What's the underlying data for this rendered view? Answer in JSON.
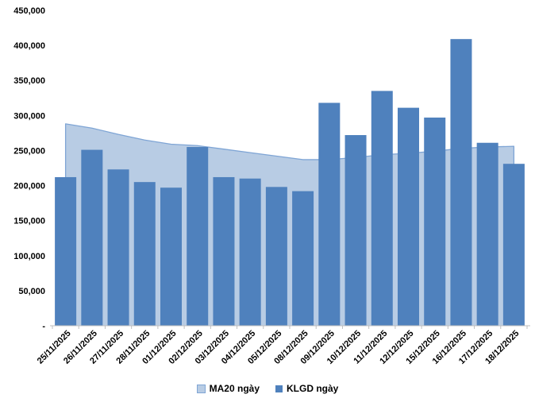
{
  "chart_data": {
    "type": "combo-area-bar",
    "title": "",
    "xlabel": "",
    "ylabel": "",
    "categories": [
      "25/11/2025",
      "26/11/2025",
      "27/11/2025",
      "28/11/2025",
      "01/12/2025",
      "02/12/2025",
      "03/12/2025",
      "04/12/2025",
      "05/12/2025",
      "08/12/2025",
      "09/12/2025",
      "10/12/2025",
      "11/12/2025",
      "12/12/2025",
      "15/12/2025",
      "16/12/2025",
      "17/12/2025",
      "18/12/2025"
    ],
    "series": [
      {
        "name": "MA20 ngày",
        "type": "area",
        "fill": "#B8CCE4",
        "line": "#7FA5D5",
        "values": [
          288000,
          282000,
          273000,
          265000,
          259000,
          257000,
          252000,
          247000,
          242000,
          237000,
          237000,
          240000,
          244000,
          246000,
          249000,
          253000,
          255000,
          256000
        ]
      },
      {
        "name": "KLGD ngày",
        "type": "bar",
        "fill": "#4F81BD",
        "values": [
          212000,
          251000,
          223000,
          205000,
          197000,
          255000,
          212000,
          210000,
          198000,
          192000,
          318000,
          272000,
          335000,
          311000,
          297000,
          409000,
          261000,
          231000
        ]
      }
    ],
    "ylim": [
      0,
      450000
    ],
    "ytick_step": 50000,
    "ytick_labels": [
      "-",
      "50,000",
      "100,000",
      "150,000",
      "200,000",
      "250,000",
      "300,000",
      "350,000",
      "400,000",
      "450,000"
    ],
    "grid": false,
    "legend_position": "bottom",
    "axis_color": "#BFBFBF",
    "text_color": "#000000"
  }
}
